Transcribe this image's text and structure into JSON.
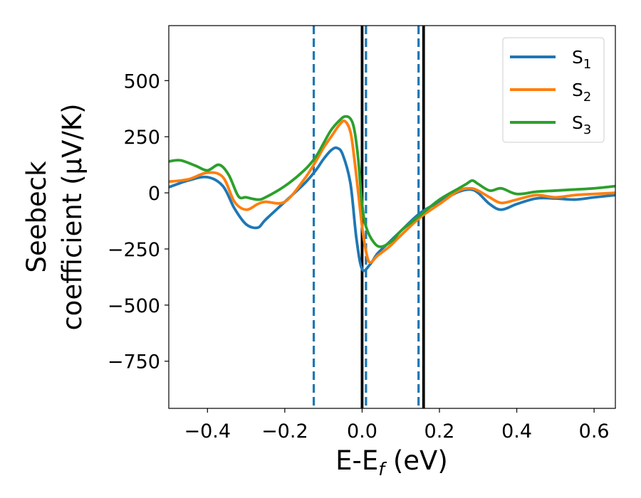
{
  "chart_data": {
    "type": "line",
    "xlabel": "E-E",
    "xlabel_sub": "f",
    "xlabel_unit": " (eV)",
    "ylabel_line1": "Seebeck",
    "ylabel_line2": "coefficient  (μV/K)",
    "xlim": [
      -0.5,
      0.655
    ],
    "ylim": [
      -960,
      745
    ],
    "x_ticks": [
      -0.4,
      -0.2,
      0.0,
      0.2,
      0.4,
      0.6
    ],
    "x_tick_labels": [
      "−0.4",
      "−0.2",
      "0.0",
      "0.2",
      "0.4",
      "0.6"
    ],
    "y_ticks": [
      500,
      250,
      0,
      -250,
      -500,
      -750
    ],
    "y_tick_labels": [
      "500",
      "250",
      "0",
      "−250",
      "−500",
      "−750"
    ],
    "grid": false,
    "legend_position": "top-right",
    "vlines": [
      {
        "x": -0.125,
        "style": "dashed",
        "color": "#1f77b4"
      },
      {
        "x": 0.01,
        "style": "dashed",
        "color": "#1f77b4"
      },
      {
        "x": 0.146,
        "style": "dashed",
        "color": "#1f77b4"
      },
      {
        "x": 0.0,
        "style": "solid",
        "color": "#000000"
      },
      {
        "x": 0.159,
        "style": "solid",
        "color": "#000000"
      }
    ],
    "series": [
      {
        "name": "S",
        "name_sub": "1",
        "color": "#1f77b4",
        "x": [
          -0.5,
          -0.45,
          -0.4,
          -0.36,
          -0.33,
          -0.3,
          -0.27,
          -0.25,
          -0.2,
          -0.15,
          -0.12,
          -0.1,
          -0.08,
          -0.065,
          -0.05,
          -0.03,
          -0.015,
          0.0,
          0.02,
          0.04,
          0.07,
          0.1,
          0.15,
          0.2,
          0.25,
          0.28,
          0.3,
          0.33,
          0.36,
          0.4,
          0.45,
          0.5,
          0.55,
          0.6,
          0.655
        ],
        "y": [
          25,
          55,
          70,
          30,
          -70,
          -140,
          -155,
          -120,
          -40,
          40,
          100,
          150,
          190,
          200,
          170,
          40,
          -200,
          -340,
          -320,
          -270,
          -220,
          -170,
          -90,
          -40,
          5,
          15,
          0,
          -50,
          -75,
          -50,
          -25,
          -25,
          -30,
          -20,
          -10
        ]
      },
      {
        "name": "S",
        "name_sub": "2",
        "color": "#ff7f0e",
        "x": [
          -0.5,
          -0.45,
          -0.4,
          -0.36,
          -0.33,
          -0.3,
          -0.27,
          -0.25,
          -0.2,
          -0.15,
          -0.12,
          -0.1,
          -0.08,
          -0.06,
          -0.045,
          -0.03,
          -0.02,
          -0.01,
          0.0,
          0.01,
          0.02,
          0.04,
          0.07,
          0.1,
          0.15,
          0.2,
          0.25,
          0.28,
          0.3,
          0.33,
          0.36,
          0.4,
          0.45,
          0.5,
          0.55,
          0.6,
          0.655
        ],
        "y": [
          50,
          60,
          90,
          70,
          -40,
          -75,
          -50,
          -40,
          -40,
          60,
          140,
          200,
          250,
          300,
          320,
          270,
          150,
          0,
          -150,
          -260,
          -310,
          -280,
          -240,
          -190,
          -110,
          -50,
          10,
          20,
          10,
          -20,
          -45,
          -30,
          -10,
          -20,
          -10,
          -5,
          0
        ]
      },
      {
        "name": "S",
        "name_sub": "3",
        "color": "#2ca02c",
        "x": [
          -0.5,
          -0.47,
          -0.43,
          -0.4,
          -0.37,
          -0.345,
          -0.32,
          -0.3,
          -0.27,
          -0.25,
          -0.2,
          -0.15,
          -0.12,
          -0.1,
          -0.08,
          -0.06,
          -0.045,
          -0.03,
          -0.02,
          -0.01,
          0.0,
          0.01,
          0.03,
          0.05,
          0.08,
          0.1,
          0.15,
          0.2,
          0.25,
          0.27,
          0.285,
          0.3,
          0.33,
          0.36,
          0.4,
          0.45,
          0.5,
          0.55,
          0.6,
          0.655
        ],
        "y": [
          140,
          145,
          120,
          100,
          125,
          80,
          -15,
          -20,
          -30,
          -20,
          30,
          100,
          160,
          220,
          280,
          320,
          340,
          330,
          280,
          150,
          -50,
          -150,
          -220,
          -240,
          -210,
          -170,
          -100,
          -30,
          20,
          40,
          55,
          40,
          10,
          20,
          -5,
          5,
          10,
          15,
          20,
          30
        ]
      }
    ]
  }
}
